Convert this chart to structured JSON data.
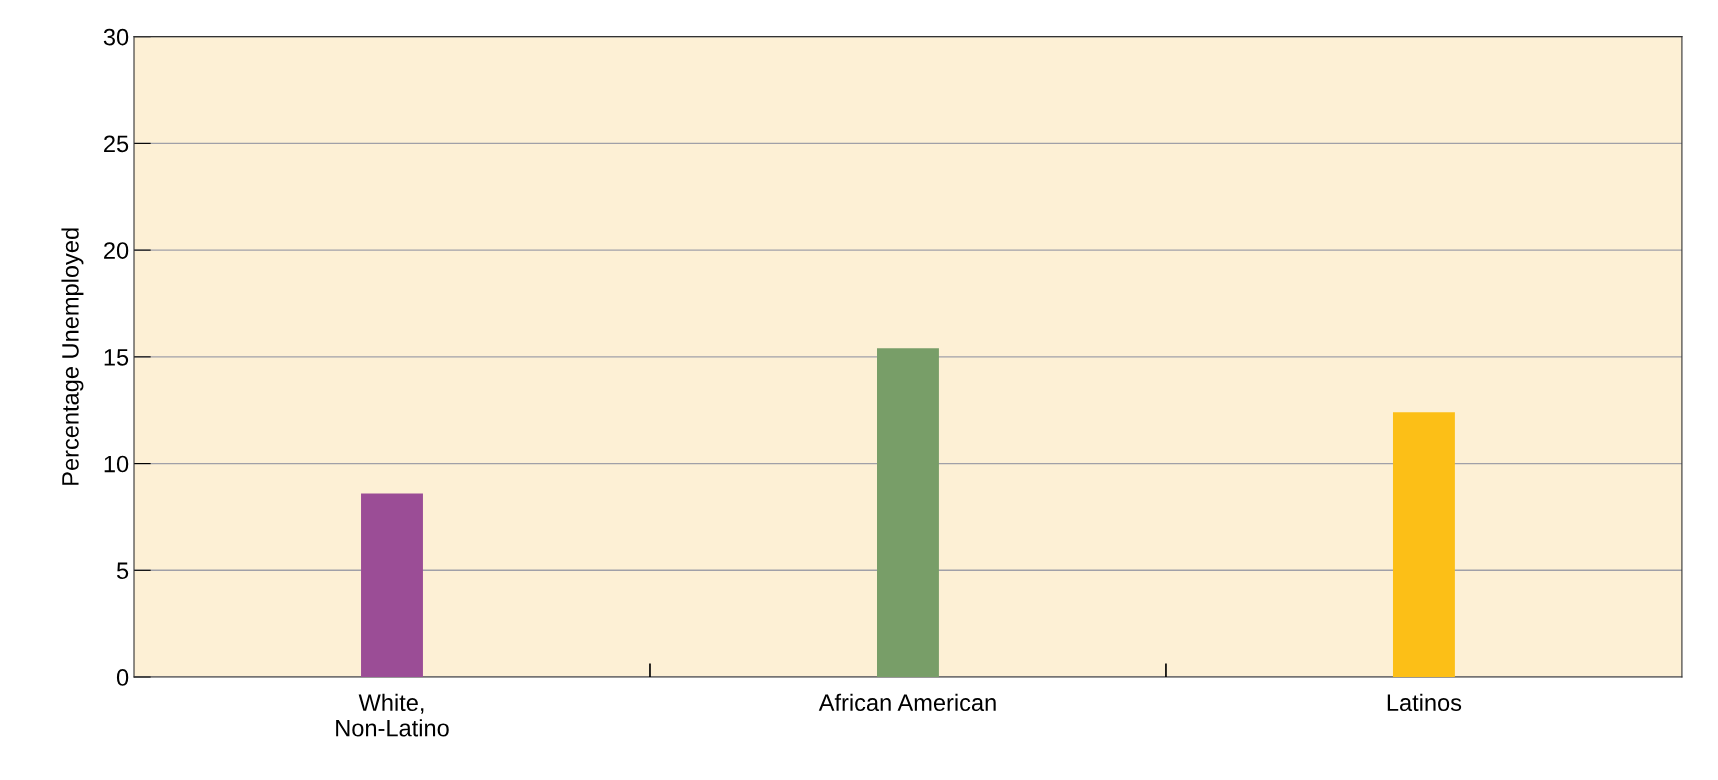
{
  "chart_data": {
    "type": "bar",
    "ylabel": "Percentage Unemployed",
    "categories": [
      "White,\nNon-Latino",
      "African American",
      "Latinos"
    ],
    "values": [
      8.6,
      15.4,
      12.4
    ],
    "colors": [
      "#9b4d96",
      "#789e68",
      "#fcbf17"
    ],
    "ylim": [
      0,
      30
    ],
    "yticks": [
      0,
      5,
      10,
      15,
      20,
      25,
      30
    ],
    "grid": "y"
  }
}
